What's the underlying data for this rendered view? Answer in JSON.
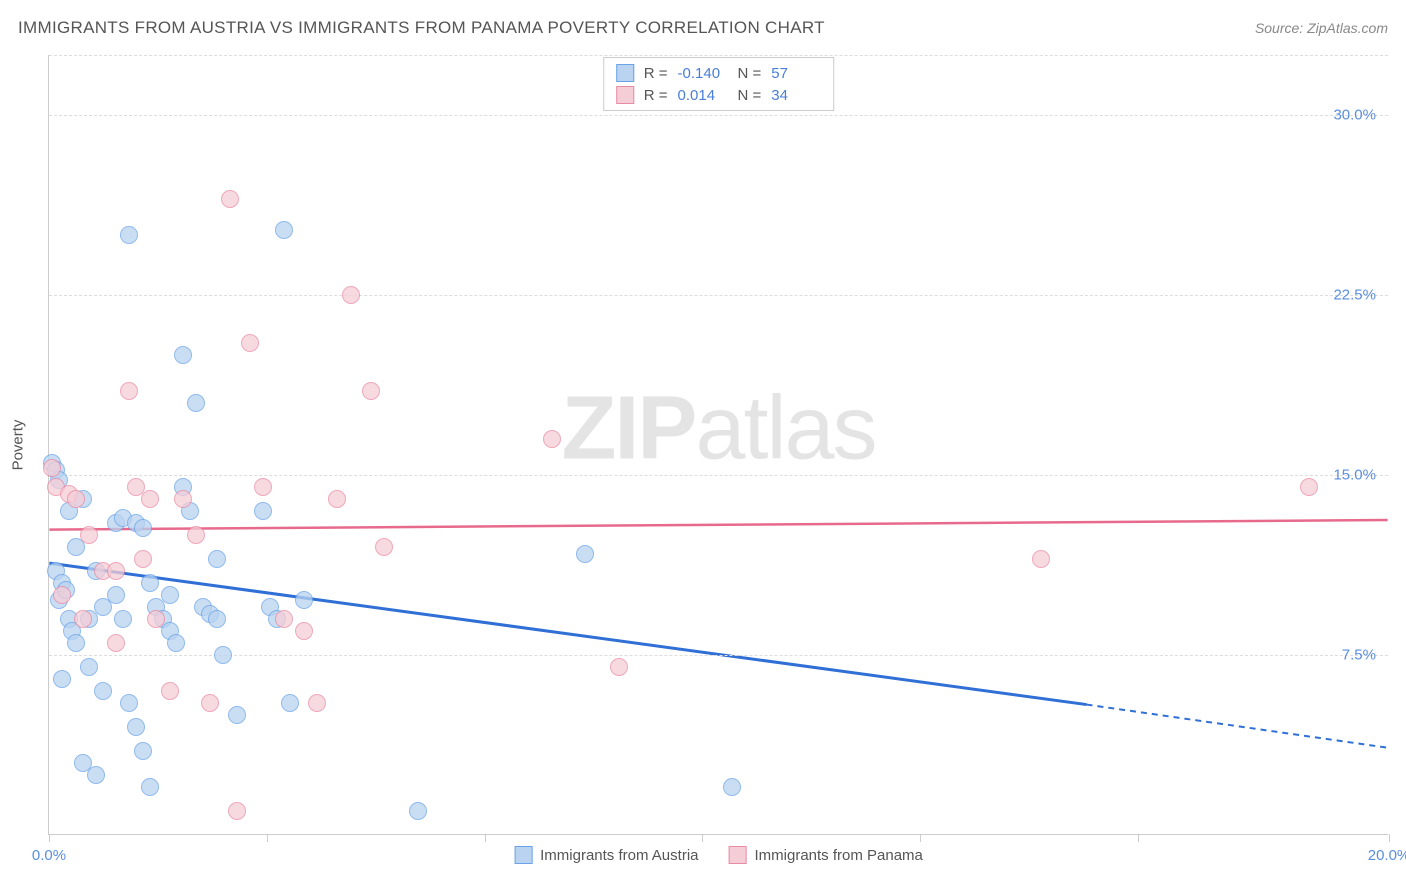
{
  "title": "IMMIGRANTS FROM AUSTRIA VS IMMIGRANTS FROM PANAMA POVERTY CORRELATION CHART",
  "source": "Source: ZipAtlas.com",
  "watermark": {
    "bold": "ZIP",
    "rest": "atlas"
  },
  "y_axis_label": "Poverty",
  "chart": {
    "type": "scatter",
    "background_color": "#ffffff",
    "grid_color": "#dddddd",
    "axis_color": "#cccccc",
    "tick_label_color": "#5a8ee0",
    "xlim": [
      0,
      20
    ],
    "ylim": [
      0,
      32.5
    ],
    "x_ticks": [
      0,
      3.25,
      6.5,
      9.75,
      13,
      16.25,
      20
    ],
    "x_tick_labels": {
      "0": "0.0%",
      "20": "20.0%"
    },
    "y_ticks": [
      7.5,
      15.0,
      22.5,
      30.0
    ],
    "y_tick_labels": [
      "7.5%",
      "15.0%",
      "22.5%",
      "30.0%"
    ],
    "marker_radius": 9,
    "marker_stroke_width": 1.5,
    "series": [
      {
        "name": "Immigrants from Austria",
        "fill_color": "#b9d3f0",
        "stroke_color": "#6aa3e8",
        "trend_color": "#2f6fd6",
        "trend_width": 3,
        "R": "-0.140",
        "N": "57",
        "trend": {
          "x1": 0,
          "y1": 11.3,
          "x2": 15.5,
          "y2": 5.4,
          "extrap_x2": 20,
          "extrap_y2": 3.6
        },
        "points": [
          [
            0.05,
            15.5
          ],
          [
            0.1,
            15.2
          ],
          [
            0.15,
            14.8
          ],
          [
            0.1,
            11.0
          ],
          [
            0.2,
            10.5
          ],
          [
            0.15,
            9.8
          ],
          [
            0.25,
            10.2
          ],
          [
            0.3,
            9.0
          ],
          [
            0.35,
            8.5
          ],
          [
            0.4,
            8.0
          ],
          [
            0.2,
            6.5
          ],
          [
            0.6,
            7.0
          ],
          [
            0.8,
            6.0
          ],
          [
            0.5,
            3.0
          ],
          [
            0.7,
            2.5
          ],
          [
            1.2,
            25.0
          ],
          [
            1.0,
            13.0
          ],
          [
            1.1,
            13.2
          ],
          [
            1.3,
            13.0
          ],
          [
            1.4,
            12.8
          ],
          [
            1.5,
            10.5
          ],
          [
            1.6,
            9.5
          ],
          [
            1.7,
            9.0
          ],
          [
            1.8,
            8.5
          ],
          [
            1.9,
            8.0
          ],
          [
            1.2,
            5.5
          ],
          [
            1.3,
            4.5
          ],
          [
            1.4,
            3.5
          ],
          [
            1.5,
            2.0
          ],
          [
            2.0,
            20.0
          ],
          [
            2.2,
            18.0
          ],
          [
            2.1,
            13.5
          ],
          [
            2.3,
            9.5
          ],
          [
            2.4,
            9.2
          ],
          [
            2.5,
            9.0
          ],
          [
            2.6,
            7.5
          ],
          [
            2.8,
            5.0
          ],
          [
            3.5,
            25.2
          ],
          [
            3.2,
            13.5
          ],
          [
            3.3,
            9.5
          ],
          [
            3.4,
            9.0
          ],
          [
            3.6,
            5.5
          ],
          [
            3.8,
            9.8
          ],
          [
            2.0,
            14.5
          ],
          [
            2.5,
            11.5
          ],
          [
            1.0,
            10.0
          ],
          [
            0.8,
            9.5
          ],
          [
            0.6,
            9.0
          ],
          [
            1.8,
            10.0
          ],
          [
            5.5,
            1.0
          ],
          [
            8.0,
            11.7
          ],
          [
            10.2,
            2.0
          ],
          [
            0.5,
            14.0
          ],
          [
            0.3,
            13.5
          ],
          [
            0.4,
            12.0
          ],
          [
            0.7,
            11.0
          ],
          [
            1.1,
            9.0
          ]
        ]
      },
      {
        "name": "Immigrants from Panama",
        "fill_color": "#f5cdd6",
        "stroke_color": "#e98ba4",
        "trend_color": "#e76a8c",
        "trend_width": 2.5,
        "R": "0.014",
        "N": "34",
        "trend": {
          "x1": 0,
          "y1": 12.7,
          "x2": 20,
          "y2": 13.1
        },
        "points": [
          [
            0.05,
            15.3
          ],
          [
            0.1,
            14.5
          ],
          [
            0.3,
            14.2
          ],
          [
            0.4,
            14.0
          ],
          [
            0.6,
            12.5
          ],
          [
            0.8,
            11.0
          ],
          [
            1.0,
            11.0
          ],
          [
            1.2,
            18.5
          ],
          [
            1.3,
            14.5
          ],
          [
            1.5,
            14.0
          ],
          [
            1.6,
            9.0
          ],
          [
            1.8,
            6.0
          ],
          [
            2.0,
            14.0
          ],
          [
            2.2,
            12.5
          ],
          [
            2.4,
            5.5
          ],
          [
            2.7,
            26.5
          ],
          [
            2.8,
            1.0
          ],
          [
            3.0,
            20.5
          ],
          [
            3.2,
            14.5
          ],
          [
            3.5,
            9.0
          ],
          [
            3.8,
            8.5
          ],
          [
            4.0,
            5.5
          ],
          [
            4.5,
            22.5
          ],
          [
            4.8,
            18.5
          ],
          [
            4.3,
            14.0
          ],
          [
            5.0,
            12.0
          ],
          [
            7.5,
            16.5
          ],
          [
            8.5,
            7.0
          ],
          [
            14.8,
            11.5
          ],
          [
            18.8,
            14.5
          ],
          [
            0.2,
            10.0
          ],
          [
            0.5,
            9.0
          ],
          [
            1.0,
            8.0
          ],
          [
            1.4,
            11.5
          ]
        ]
      }
    ]
  },
  "legend_top_labels": {
    "R": "R =",
    "N": "N ="
  },
  "legend_bottom": [
    {
      "swatch_fill": "#b9d3f0",
      "swatch_stroke": "#6aa3e8",
      "label": "Immigrants from Austria"
    },
    {
      "swatch_fill": "#f5cdd6",
      "swatch_stroke": "#e98ba4",
      "label": "Immigrants from Panama"
    }
  ]
}
